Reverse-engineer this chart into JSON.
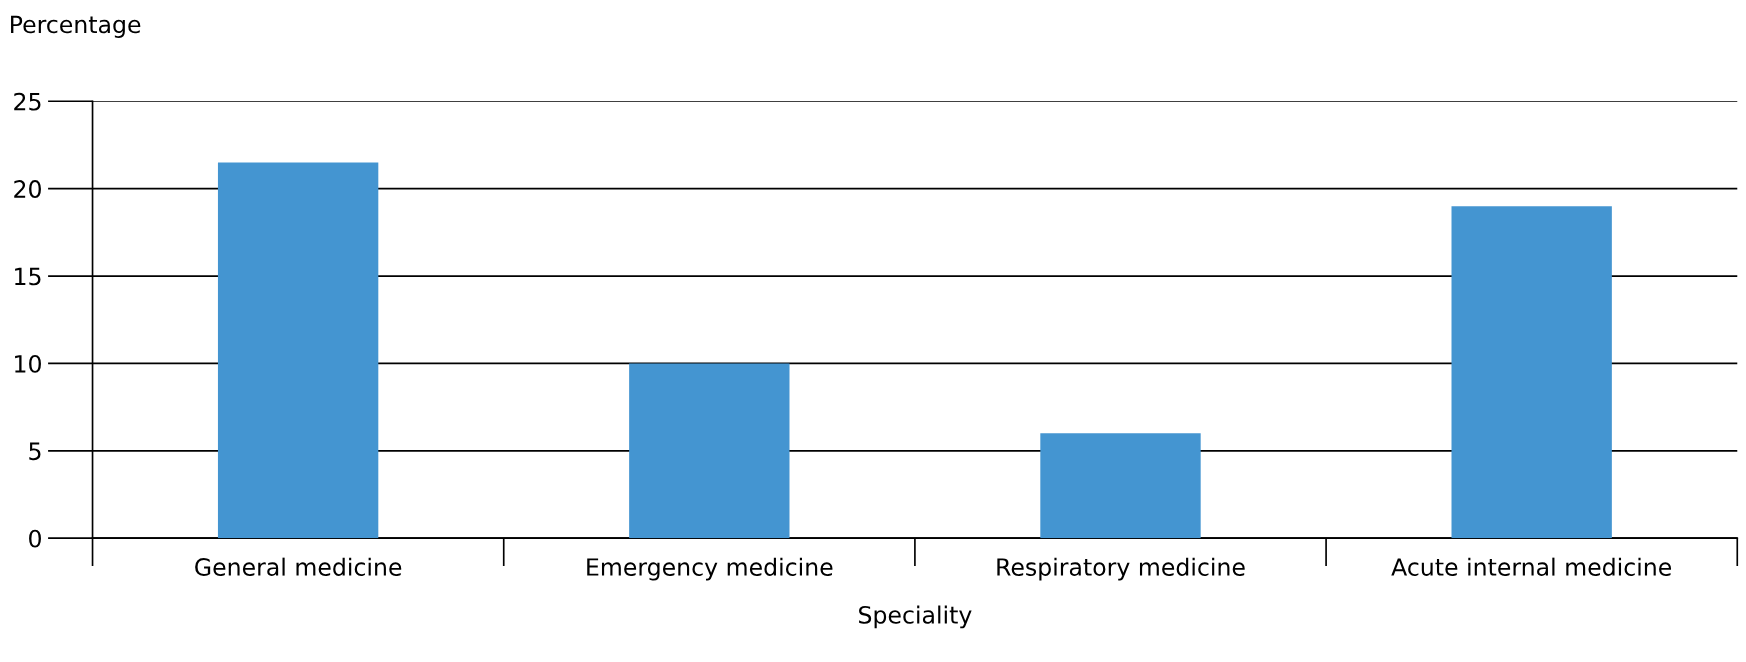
{
  "chart_data": {
    "type": "bar",
    "xlabel": "Speciality",
    "ylabel": "Percentage",
    "categories": [
      "General medicine",
      "Emergency medicine",
      "Respiratory medicine",
      "Acute internal medicine"
    ],
    "values": [
      21.5,
      10,
      6,
      19
    ],
    "color": "#4495d1",
    "ylim": [
      0,
      25
    ],
    "yticks": [
      0,
      5,
      10,
      15,
      20,
      25
    ],
    "grid": "y",
    "legend": false
  }
}
